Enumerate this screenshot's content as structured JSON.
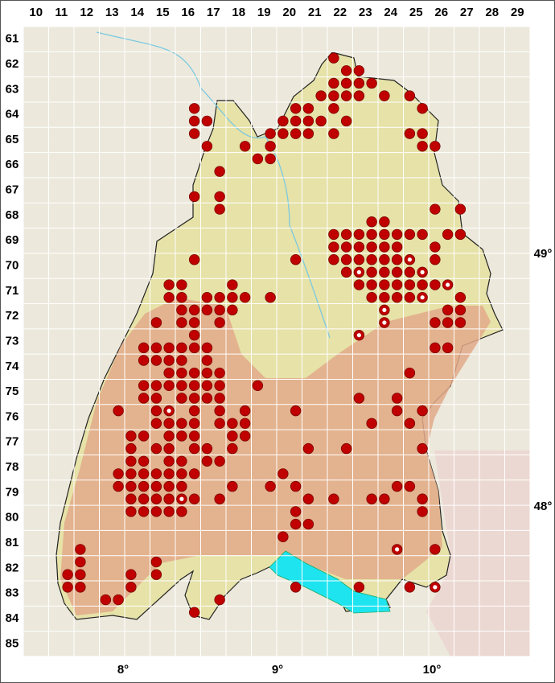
{
  "column_labels": [
    10,
    11,
    12,
    13,
    14,
    15,
    16,
    17,
    18,
    19,
    20,
    21,
    22,
    23,
    24,
    25,
    26,
    27,
    28,
    29
  ],
  "row_labels": [
    61,
    62,
    63,
    64,
    65,
    66,
    67,
    68,
    69,
    70,
    71,
    72,
    73,
    74,
    75,
    76,
    77,
    78,
    79,
    80,
    81,
    82,
    83,
    84,
    85
  ],
  "longitude_labels": [
    "8°",
    "9°",
    "10°"
  ],
  "latitude_labels": [
    "49°",
    "48°"
  ],
  "records": [
    [
      22,
      62,
      1
    ],
    [
      22,
      62,
      4
    ],
    [
      23,
      62,
      3
    ],
    [
      22,
      63,
      1
    ],
    [
      22,
      63,
      2
    ],
    [
      23,
      63,
      1
    ],
    [
      23,
      63,
      2
    ],
    [
      21,
      63,
      4
    ],
    [
      22,
      63,
      3
    ],
    [
      22,
      63,
      4
    ],
    [
      23,
      63,
      3
    ],
    [
      24,
      63,
      3
    ],
    [
      25,
      63,
      3
    ],
    [
      16,
      64,
      2
    ],
    [
      20,
      64,
      2
    ],
    [
      21,
      64,
      1
    ],
    [
      22,
      64,
      1
    ],
    [
      25,
      64,
      2
    ],
    [
      16,
      64,
      4
    ],
    [
      17,
      64,
      3
    ],
    [
      20,
      64,
      3
    ],
    [
      20,
      64,
      4
    ],
    [
      21,
      64,
      3
    ],
    [
      21,
      64,
      4
    ],
    [
      22,
      64,
      4
    ],
    [
      16,
      65,
      2
    ],
    [
      19,
      65,
      2
    ],
    [
      20,
      65,
      1
    ],
    [
      20,
      65,
      2
    ],
    [
      21,
      65,
      1
    ],
    [
      22,
      65,
      1
    ],
    [
      25,
      65,
      1
    ],
    [
      25,
      65,
      2
    ],
    [
      17,
      65,
      3
    ],
    [
      18,
      65,
      4
    ],
    [
      19,
      65,
      4
    ],
    [
      25,
      65,
      4
    ],
    [
      26,
      65,
      3
    ],
    [
      19,
      66,
      1
    ],
    [
      19,
      66,
      2
    ],
    [
      17,
      66,
      4
    ],
    [
      16,
      67,
      4
    ],
    [
      17,
      67,
      4
    ],
    [
      17,
      68,
      2
    ],
    [
      26,
      68,
      1
    ],
    [
      27,
      68,
      1
    ],
    [
      23,
      68,
      4
    ],
    [
      24,
      68,
      3
    ],
    [
      22,
      69,
      1
    ],
    [
      22,
      69,
      2
    ],
    [
      23,
      69,
      1
    ],
    [
      23,
      69,
      2
    ],
    [
      24,
      69,
      1
    ],
    [
      24,
      69,
      2
    ],
    [
      25,
      69,
      1
    ],
    [
      25,
      69,
      2
    ],
    [
      26,
      69,
      2
    ],
    [
      27,
      69,
      1
    ],
    [
      22,
      69,
      3
    ],
    [
      22,
      69,
      4
    ],
    [
      23,
      69,
      3
    ],
    [
      23,
      69,
      4
    ],
    [
      24,
      69,
      3
    ],
    [
      24,
      69,
      4
    ],
    [
      26,
      69,
      3
    ],
    [
      16,
      70,
      2
    ],
    [
      20,
      70,
      2
    ],
    [
      22,
      70,
      1
    ],
    [
      22,
      70,
      2
    ],
    [
      23,
      70,
      1
    ],
    [
      23,
      70,
      2
    ],
    [
      24,
      70,
      1
    ],
    [
      24,
      70,
      2
    ],
    [
      26,
      70,
      1
    ],
    [
      22,
      70,
      4
    ],
    [
      23,
      70,
      4
    ],
    [
      24,
      70,
      3
    ],
    [
      24,
      70,
      4
    ],
    [
      25,
      70,
      3
    ],
    [
      15,
      71,
      2
    ],
    [
      16,
      71,
      1
    ],
    [
      18,
      71,
      1
    ],
    [
      23,
      71,
      1
    ],
    [
      23,
      71,
      2
    ],
    [
      24,
      71,
      1
    ],
    [
      24,
      71,
      2
    ],
    [
      25,
      71,
      1
    ],
    [
      25,
      71,
      2
    ],
    [
      26,
      71,
      1
    ],
    [
      15,
      71,
      4
    ],
    [
      16,
      71,
      3
    ],
    [
      17,
      71,
      3
    ],
    [
      17,
      71,
      4
    ],
    [
      18,
      71,
      3
    ],
    [
      18,
      71,
      4
    ],
    [
      19,
      71,
      4
    ],
    [
      23,
      71,
      4
    ],
    [
      24,
      71,
      3
    ],
    [
      24,
      71,
      4
    ],
    [
      25,
      71,
      3
    ],
    [
      27,
      71,
      3
    ],
    [
      16,
      72,
      1
    ],
    [
      16,
      72,
      2
    ],
    [
      17,
      72,
      1
    ],
    [
      17,
      72,
      2
    ],
    [
      18,
      72,
      1
    ],
    [
      26,
      72,
      2
    ],
    [
      27,
      72,
      1
    ],
    [
      15,
      72,
      3
    ],
    [
      16,
      72,
      3
    ],
    [
      16,
      72,
      4
    ],
    [
      17,
      72,
      4
    ],
    [
      26,
      72,
      3
    ],
    [
      26,
      72,
      4
    ],
    [
      27,
      72,
      3
    ],
    [
      16,
      73,
      2
    ],
    [
      14,
      73,
      4
    ],
    [
      15,
      73,
      3
    ],
    [
      15,
      73,
      4
    ],
    [
      16,
      73,
      3
    ],
    [
      16,
      73,
      4
    ],
    [
      17,
      73,
      3
    ],
    [
      26,
      73,
      3
    ],
    [
      26,
      73,
      4
    ],
    [
      14,
      74,
      2
    ],
    [
      15,
      74,
      1
    ],
    [
      15,
      74,
      2
    ],
    [
      16,
      74,
      1
    ],
    [
      17,
      74,
      1
    ],
    [
      15,
      74,
      4
    ],
    [
      16,
      74,
      3
    ],
    [
      16,
      74,
      4
    ],
    [
      17,
      74,
      3
    ],
    [
      17,
      74,
      4
    ],
    [
      25,
      74,
      3
    ],
    [
      14,
      75,
      2
    ],
    [
      15,
      75,
      1
    ],
    [
      15,
      75,
      2
    ],
    [
      16,
      75,
      1
    ],
    [
      16,
      75,
      2
    ],
    [
      17,
      75,
      1
    ],
    [
      17,
      75,
      2
    ],
    [
      19,
      75,
      1
    ],
    [
      14,
      75,
      4
    ],
    [
      15,
      75,
      3
    ],
    [
      16,
      75,
      3
    ],
    [
      16,
      75,
      4
    ],
    [
      17,
      75,
      3
    ],
    [
      17,
      75,
      4
    ],
    [
      23,
      75,
      3
    ],
    [
      24,
      75,
      4
    ],
    [
      13,
      76,
      2
    ],
    [
      15,
      76,
      1
    ],
    [
      16,
      76,
      2
    ],
    [
      17,
      76,
      2
    ],
    [
      18,
      76,
      2
    ],
    [
      20,
      76,
      2
    ],
    [
      24,
      76,
      2
    ],
    [
      25,
      76,
      2
    ],
    [
      15,
      76,
      3
    ],
    [
      15,
      76,
      4
    ],
    [
      16,
      76,
      3
    ],
    [
      16,
      76,
      4
    ],
    [
      17,
      76,
      4
    ],
    [
      18,
      76,
      3
    ],
    [
      18,
      76,
      4
    ],
    [
      23,
      76,
      4
    ],
    [
      25,
      76,
      3
    ],
    [
      14,
      77,
      1
    ],
    [
      14,
      77,
      2
    ],
    [
      15,
      77,
      2
    ],
    [
      16,
      77,
      1
    ],
    [
      16,
      77,
      2
    ],
    [
      18,
      77,
      1
    ],
    [
      18,
      77,
      2
    ],
    [
      14,
      77,
      3
    ],
    [
      15,
      77,
      3
    ],
    [
      15,
      77,
      4
    ],
    [
      16,
      77,
      4
    ],
    [
      17,
      77,
      3
    ],
    [
      18,
      77,
      3
    ],
    [
      21,
      77,
      3
    ],
    [
      22,
      77,
      4
    ],
    [
      25,
      77,
      4
    ],
    [
      14,
      78,
      1
    ],
    [
      14,
      78,
      2
    ],
    [
      15,
      78,
      2
    ],
    [
      16,
      78,
      1
    ],
    [
      17,
      78,
      1
    ],
    [
      17,
      78,
      2
    ],
    [
      13,
      78,
      4
    ],
    [
      14,
      78,
      3
    ],
    [
      14,
      78,
      4
    ],
    [
      15,
      78,
      3
    ],
    [
      15,
      78,
      4
    ],
    [
      16,
      78,
      3
    ],
    [
      16,
      78,
      4
    ],
    [
      20,
      78,
      3
    ],
    [
      13,
      79,
      2
    ],
    [
      14,
      79,
      1
    ],
    [
      14,
      79,
      2
    ],
    [
      15,
      79,
      1
    ],
    [
      15,
      79,
      2
    ],
    [
      16,
      79,
      1
    ],
    [
      18,
      79,
      1
    ],
    [
      19,
      79,
      2
    ],
    [
      20,
      79,
      2
    ],
    [
      24,
      79,
      2
    ],
    [
      25,
      79,
      1
    ],
    [
      14,
      79,
      3
    ],
    [
      14,
      79,
      4
    ],
    [
      15,
      79,
      3
    ],
    [
      15,
      79,
      4
    ],
    [
      16,
      79,
      4
    ],
    [
      17,
      79,
      4
    ],
    [
      21,
      79,
      3
    ],
    [
      22,
      79,
      3
    ],
    [
      23,
      79,
      4
    ],
    [
      24,
      79,
      3
    ],
    [
      25,
      79,
      4
    ],
    [
      14,
      80,
      1
    ],
    [
      14,
      80,
      2
    ],
    [
      15,
      80,
      1
    ],
    [
      15,
      80,
      2
    ],
    [
      16,
      80,
      1
    ],
    [
      20,
      80,
      2
    ],
    [
      25,
      80,
      2
    ],
    [
      20,
      80,
      4
    ],
    [
      21,
      80,
      3
    ],
    [
      20,
      81,
      1
    ],
    [
      12,
      81,
      3
    ],
    [
      26,
      81,
      3
    ],
    [
      12,
      82,
      1
    ],
    [
      15,
      82,
      1
    ],
    [
      11,
      82,
      4
    ],
    [
      12,
      82,
      3
    ],
    [
      14,
      82,
      3
    ],
    [
      15,
      82,
      3
    ],
    [
      11,
      83,
      2
    ],
    [
      12,
      83,
      1
    ],
    [
      14,
      83,
      1
    ],
    [
      20,
      83,
      2
    ],
    [
      23,
      83,
      1
    ],
    [
      25,
      83,
      1
    ],
    [
      13,
      83,
      3
    ],
    [
      13,
      83,
      4
    ],
    [
      17,
      83,
      4
    ],
    [
      16,
      84,
      2
    ]
  ],
  "records_open": [
    [
      25,
      70,
      1
    ],
    [
      23,
      70,
      3
    ],
    [
      25,
      70,
      4
    ],
    [
      26,
      71,
      2
    ],
    [
      25,
      71,
      4
    ],
    [
      24,
      72,
      1
    ],
    [
      24,
      72,
      3
    ],
    [
      23,
      73,
      1
    ],
    [
      15,
      76,
      2
    ],
    [
      16,
      79,
      3
    ],
    [
      24,
      81,
      4
    ],
    [
      26,
      83,
      1
    ]
  ]
}
